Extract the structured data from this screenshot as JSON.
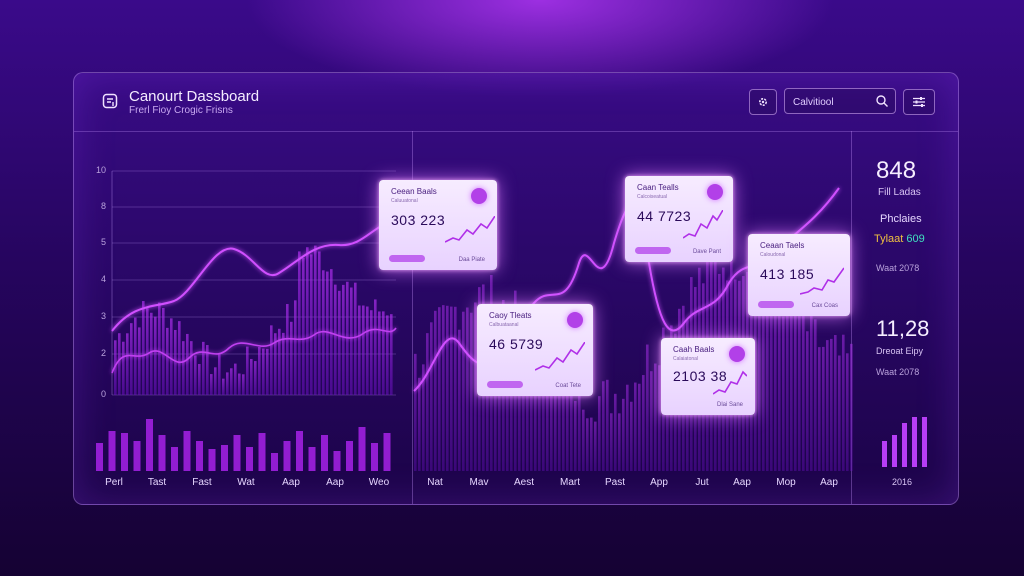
{
  "header": {
    "title": "Canourt Dassboard",
    "subtitle": "Frerl Fioy Crogic Frisns",
    "search_placeholder": "Calvitiool"
  },
  "left_chart": {
    "y_ticks": [
      "10",
      "8",
      "5",
      "4",
      "3",
      "2",
      "0"
    ],
    "x_labels": [
      "Perl",
      "Tast",
      "Fast",
      "Wat",
      "Aap",
      "Aap",
      "Weo"
    ]
  },
  "right_chart": {
    "x_labels": [
      "Nat",
      "Mav",
      "Aest",
      "Mart",
      "Past",
      "App",
      "Jut",
      "Aap",
      "Mop",
      "Aap"
    ]
  },
  "cards": [
    {
      "title": "Ceean Baals",
      "sub": "Caluuatonal",
      "value": "303 223",
      "foot": "Daa Piate"
    },
    {
      "title": "Caan Tealls",
      "sub": "Calcoiseatual",
      "value": "44 7723",
      "foot": "Dave Pant"
    },
    {
      "title": "Caoy Tleats",
      "sub": "Calbuataanal",
      "value": "46 5739",
      "foot": "Coat Tete"
    },
    {
      "title": "Ceaan Taels",
      "sub": "Caloudonal",
      "value": "413 185",
      "foot": "Cax Coas"
    },
    {
      "title": "Caah Baals",
      "sub": "Calaiatonal",
      "value": "2103 38",
      "foot": "Dlai Sane"
    }
  ],
  "sidebar": {
    "big_value": "848",
    "big_label": "Fill Ladas",
    "label2": "Phclaies",
    "highlight": "Tylaat",
    "highlight_value": "609",
    "stat1": "Waat 2078",
    "value2": "11,28",
    "label3": "Dreoat Eipy",
    "stat2": "Waat 2078",
    "year": "2016"
  },
  "colors": {
    "accent": "#c040ff",
    "bar": "#a020e0",
    "line": "#d050ff",
    "highlight_yellow": "#f0c040",
    "highlight_teal": "#40e0c0"
  }
}
